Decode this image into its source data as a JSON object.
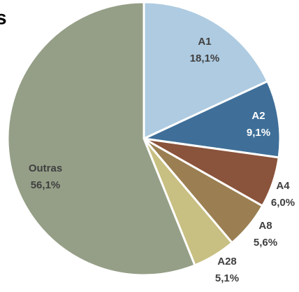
{
  "chart_data": {
    "type": "pie",
    "title": "s",
    "categories": [
      "A1",
      "A2",
      "A4",
      "A8",
      "A28",
      "Outras"
    ],
    "values": [
      18.1,
      9.1,
      6.0,
      5.6,
      5.1,
      56.1
    ],
    "value_labels": [
      "18,1%",
      "9,1%",
      "6,0%",
      "5,6%",
      "5,1%",
      "56,1%"
    ],
    "colors": [
      "#aecbe1",
      "#3f6f99",
      "#8a533b",
      "#9b7f52",
      "#c8bf82",
      "#959f87"
    ]
  }
}
